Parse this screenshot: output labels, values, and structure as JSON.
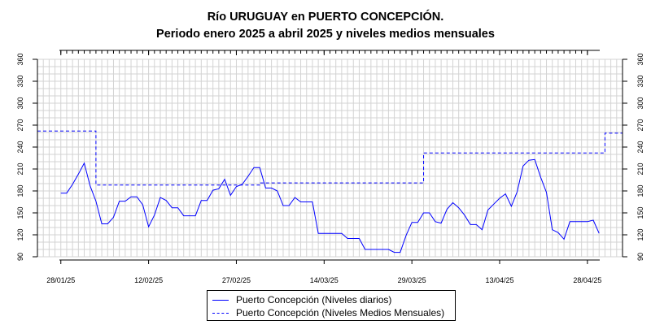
{
  "title": "Río URUGUAY en PUERTO CONCEPCIÓN.",
  "subtitle": "Periodo enero 2025 a abril 2025 y niveles medios mensuales",
  "legend": {
    "daily_label": "Puerto Concepción (Niveles diarios)",
    "monthly_label": "Puerto Concepción (Niveles Medios Mensuales)"
  },
  "colors": {
    "series": "#0000ff",
    "grid": "#d3d3d3",
    "axis": "#000000"
  },
  "chart_data": {
    "type": "line",
    "title": "Río URUGUAY en PUERTO CONCEPCIÓN.",
    "subtitle": "Periodo enero 2025 a abril 2025 y niveles medios mensuales",
    "xlabel": "",
    "ylabel": "",
    "ylim": [
      90,
      360
    ],
    "yticks": [
      90,
      120,
      150,
      180,
      210,
      240,
      270,
      300,
      330,
      360
    ],
    "xlim": [
      "2025-01-24",
      "2025-05-04"
    ],
    "xticks": [
      "2025-01-28",
      "2025-02-12",
      "2025-02-27",
      "2025-03-14",
      "2025-03-29",
      "2025-04-13",
      "2025-04-28"
    ],
    "xtick_labels": [
      "28/01/25",
      "12/02/25",
      "27/02/25",
      "14/03/25",
      "29/03/25",
      "13/04/25",
      "28/04/25"
    ],
    "grid": true,
    "legend_position": "bottom-center",
    "series": [
      {
        "name": "Puerto Concepción (Niveles diarios)",
        "style": "solid",
        "x": [
          "2025-01-28",
          "2025-01-29",
          "2025-01-30",
          "2025-01-31",
          "2025-02-01",
          "2025-02-02",
          "2025-02-03",
          "2025-02-04",
          "2025-02-05",
          "2025-02-06",
          "2025-02-07",
          "2025-02-08",
          "2025-02-09",
          "2025-02-10",
          "2025-02-11",
          "2025-02-12",
          "2025-02-13",
          "2025-02-14",
          "2025-02-15",
          "2025-02-16",
          "2025-02-17",
          "2025-02-18",
          "2025-02-19",
          "2025-02-20",
          "2025-02-21",
          "2025-02-22",
          "2025-02-23",
          "2025-02-24",
          "2025-02-25",
          "2025-02-26",
          "2025-02-27",
          "2025-02-28",
          "2025-03-01",
          "2025-03-02",
          "2025-03-03",
          "2025-03-04",
          "2025-03-05",
          "2025-03-06",
          "2025-03-07",
          "2025-03-08",
          "2025-03-09",
          "2025-03-10",
          "2025-03-11",
          "2025-03-12",
          "2025-03-13",
          "2025-03-14",
          "2025-03-15",
          "2025-03-16",
          "2025-03-17",
          "2025-03-18",
          "2025-03-19",
          "2025-03-20",
          "2025-03-21",
          "2025-03-22",
          "2025-03-23",
          "2025-03-24",
          "2025-03-25",
          "2025-03-26",
          "2025-03-27",
          "2025-03-28",
          "2025-03-29",
          "2025-03-30",
          "2025-03-31",
          "2025-04-01",
          "2025-04-02",
          "2025-04-03",
          "2025-04-04",
          "2025-04-05",
          "2025-04-06",
          "2025-04-07",
          "2025-04-08",
          "2025-04-09",
          "2025-04-10",
          "2025-04-11",
          "2025-04-12",
          "2025-04-13",
          "2025-04-14",
          "2025-04-15",
          "2025-04-16",
          "2025-04-17",
          "2025-04-18",
          "2025-04-19",
          "2025-04-20",
          "2025-04-21",
          "2025-04-22",
          "2025-04-23",
          "2025-04-24",
          "2025-04-25",
          "2025-04-26",
          "2025-04-27",
          "2025-04-28",
          "2025-04-29",
          "2025-04-30"
        ],
        "values": [
          177,
          177,
          189,
          203,
          218,
          187,
          166,
          135,
          135,
          144,
          166,
          166,
          172,
          172,
          161,
          131,
          147,
          171,
          167,
          157,
          157,
          146,
          146,
          146,
          167,
          167,
          181,
          183,
          196,
          174,
          186,
          189,
          200,
          212,
          212,
          184,
          184,
          180,
          160,
          160,
          171,
          165,
          165,
          165,
          122,
          122,
          122,
          122,
          122,
          115,
          115,
          115,
          100,
          100,
          100,
          100,
          100,
          96,
          96,
          119,
          137,
          137,
          150,
          150,
          138,
          136,
          155,
          164,
          157,
          147,
          134,
          134,
          127,
          154,
          162,
          170,
          176,
          159,
          179,
          214,
          222,
          223,
          199,
          178,
          127,
          123,
          114,
          138,
          138,
          138,
          138,
          140,
          122
        ]
      },
      {
        "name": "Puerto Concepción (Niveles Medios Mensuales)",
        "style": "dashed",
        "x": [
          "2025-01-24",
          "2025-02-03",
          "2025-03-03",
          "2025-03-31",
          "2025-05-01",
          "2025-05-04"
        ],
        "values": [
          262,
          188,
          191,
          232,
          259,
          259
        ],
        "step": "post"
      }
    ]
  }
}
